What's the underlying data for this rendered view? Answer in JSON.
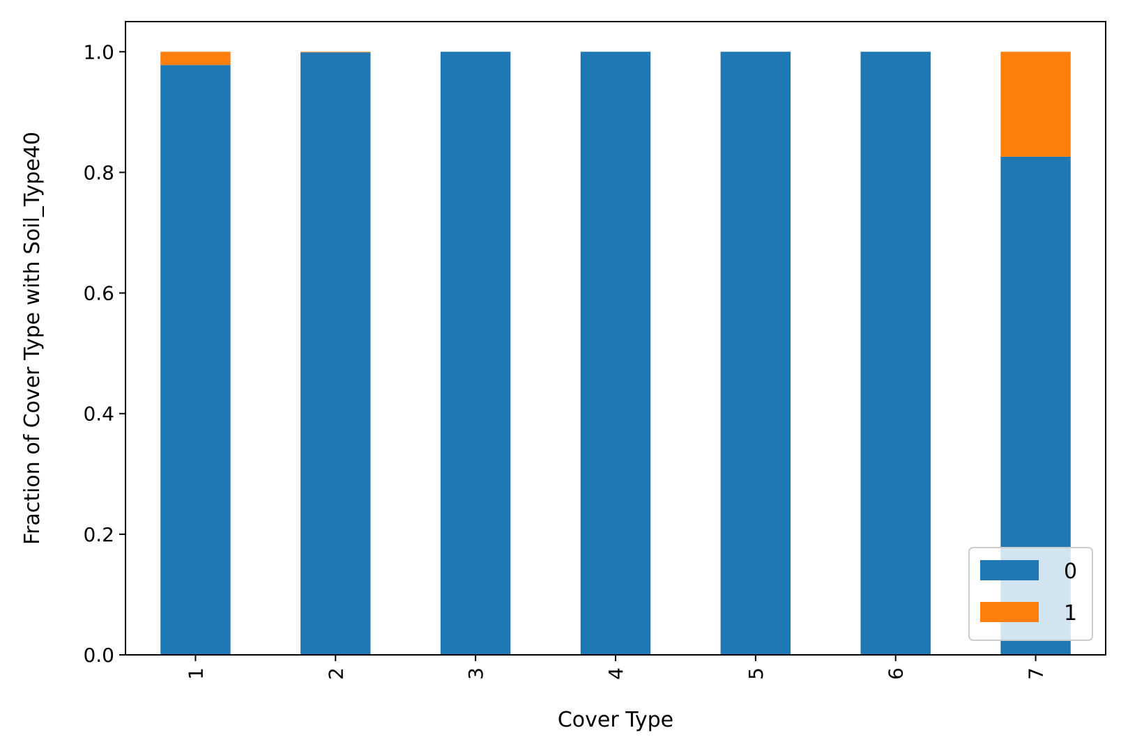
{
  "chart_data": {
    "type": "bar",
    "stacked": true,
    "categories": [
      "1",
      "2",
      "3",
      "4",
      "5",
      "6",
      "7"
    ],
    "series": [
      {
        "name": "0",
        "color": "#1f77b4",
        "values": [
          0.978,
          0.999,
          1.0,
          1.0,
          1.0,
          1.0,
          0.826
        ]
      },
      {
        "name": "1",
        "color": "#ff7f0e",
        "values": [
          0.022,
          0.001,
          0.0,
          0.0,
          0.0,
          0.0,
          0.174
        ]
      }
    ],
    "title": "",
    "xlabel": "Cover Type",
    "ylabel": "Fraction of Cover Type with Soil_Type40",
    "ylim": [
      0,
      1.05
    ],
    "yticks": [
      "0.0",
      "0.2",
      "0.4",
      "0.6",
      "0.8",
      "1.0"
    ],
    "grid": false,
    "legend_position": "lower-right"
  }
}
